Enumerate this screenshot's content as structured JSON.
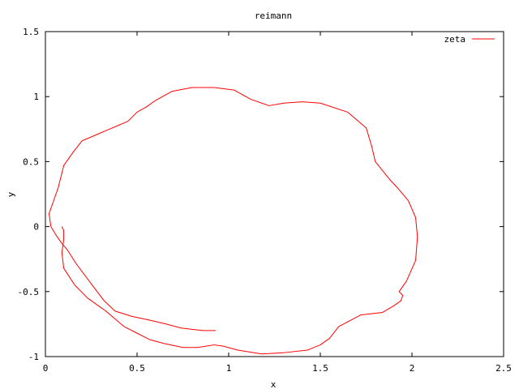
{
  "chart_data": {
    "type": "line",
    "title": "reimann",
    "xlabel": "x",
    "ylabel": "y",
    "xlim": [
      0,
      2.5
    ],
    "ylim": [
      -1,
      1.5
    ],
    "x_ticks": [
      "0",
      "0.5",
      "1",
      "1.5",
      "2",
      "2.5"
    ],
    "y_ticks": [
      "-1",
      "-0.5",
      "0",
      "0.5",
      "1",
      "1.5"
    ],
    "grid": false,
    "legend_position": "top-right",
    "series": [
      {
        "name": "zeta",
        "color": "#ff0000",
        "x": [
          0.09,
          0.1,
          0.1,
          0.09,
          0.1,
          0.16,
          0.23,
          0.33,
          0.43,
          0.5,
          0.57,
          0.65,
          0.75,
          0.83,
          0.92,
          0.97,
          1.05,
          1.18,
          1.3,
          1.43,
          1.5,
          1.55,
          1.6,
          1.72,
          1.84,
          1.9,
          1.94,
          1.95,
          1.93,
          1.97,
          2.02,
          2.03,
          2.02,
          1.98,
          1.92,
          1.88,
          1.84,
          1.8,
          1.78,
          1.75,
          1.65,
          1.5,
          1.4,
          1.3,
          1.22,
          1.12,
          1.03,
          0.92,
          0.8,
          0.69,
          0.6,
          0.55,
          0.5,
          0.45,
          0.4,
          0.3,
          0.2,
          0.15,
          0.12,
          0.1,
          0.07,
          0.04,
          0.02,
          0.03,
          0.06,
          0.09,
          0.12,
          0.17,
          0.25,
          0.32,
          0.38,
          0.47,
          0.57,
          0.66,
          0.74,
          0.8,
          0.86,
          0.93
        ],
        "y": [
          0.0,
          -0.03,
          -0.1,
          -0.2,
          -0.32,
          -0.45,
          -0.55,
          -0.65,
          -0.77,
          -0.82,
          -0.87,
          -0.9,
          -0.93,
          -0.93,
          -0.91,
          -0.92,
          -0.95,
          -0.98,
          -0.97,
          -0.95,
          -0.91,
          -0.86,
          -0.77,
          -0.68,
          -0.66,
          -0.61,
          -0.57,
          -0.53,
          -0.5,
          -0.42,
          -0.26,
          -0.08,
          0.07,
          0.2,
          0.3,
          0.36,
          0.43,
          0.5,
          0.62,
          0.76,
          0.88,
          0.95,
          0.96,
          0.95,
          0.93,
          0.98,
          1.05,
          1.07,
          1.07,
          1.04,
          0.97,
          0.92,
          0.88,
          0.81,
          0.78,
          0.72,
          0.66,
          0.57,
          0.51,
          0.47,
          0.3,
          0.18,
          0.1,
          0.0,
          -0.07,
          -0.13,
          -0.18,
          -0.29,
          -0.44,
          -0.57,
          -0.65,
          -0.69,
          -0.72,
          -0.75,
          -0.78,
          -0.79,
          -0.8,
          -0.8
        ]
      }
    ]
  }
}
